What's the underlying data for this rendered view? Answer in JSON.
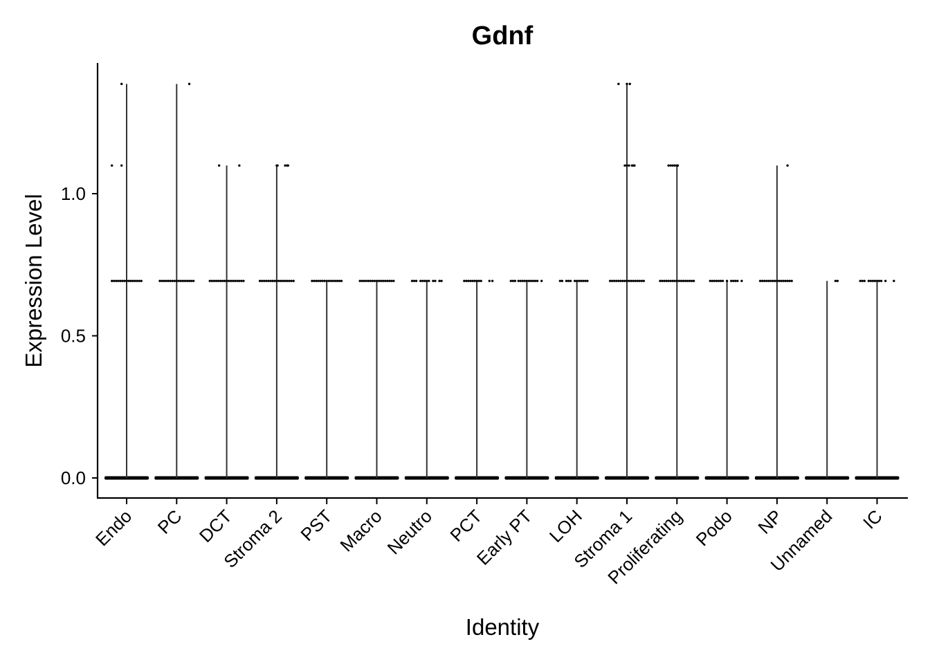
{
  "chart_data": {
    "type": "violin",
    "title": "Gdnf",
    "xlabel": "Identity",
    "ylabel": "Expression Level",
    "ylim": [
      -0.068,
      1.46
    ],
    "yticks": [
      0.0,
      0.5,
      1.0
    ],
    "ytick_labels": [
      "0.0",
      "0.5",
      "1.0"
    ],
    "grid": false,
    "legend": "none",
    "colors": {
      "points": "#000000",
      "violin": "#333333",
      "axis": "#000000"
    },
    "groups": [
      {
        "name": "Endo",
        "max": 1.386,
        "points": [
          {
            "y": 1.386,
            "dx": [
              -0.12
            ]
          },
          {
            "y": 1.099,
            "dx": [
              -0.35,
              -0.12
            ]
          },
          {
            "y": 0.693,
            "dx": [
              -0.35,
              -0.3,
              -0.25,
              -0.2,
              -0.15,
              -0.1,
              -0.05,
              0.0,
              0.05,
              0.1,
              0.15,
              0.2,
              0.25,
              0.3,
              0.35
            ]
          }
        ]
      },
      {
        "name": "PC",
        "max": 1.386,
        "points": [
          {
            "y": 1.386,
            "dx": [
              0.3
            ]
          },
          {
            "y": 0.693,
            "dx": [
              -0.4,
              -0.35,
              -0.3,
              -0.25,
              -0.2,
              -0.15,
              -0.1,
              -0.05,
              0.0,
              0.05,
              0.1,
              0.15,
              0.2,
              0.25,
              0.3,
              0.35,
              0.4
            ]
          }
        ]
      },
      {
        "name": "DCT",
        "max": 1.099,
        "points": [
          {
            "y": 1.099,
            "dx": [
              -0.18,
              0.3
            ]
          },
          {
            "y": 0.693,
            "dx": [
              -0.4,
              -0.35,
              -0.3,
              -0.25,
              -0.2,
              -0.15,
              -0.1,
              -0.05,
              0.0,
              0.05,
              0.1,
              0.15,
              0.2,
              0.25,
              0.3,
              0.35,
              0.4
            ]
          }
        ]
      },
      {
        "name": "Stroma 2",
        "max": 1.099,
        "points": [
          {
            "y": 1.099,
            "dx": [
              0.0,
              0.02,
              0.2,
              0.25,
              0.27
            ]
          },
          {
            "y": 0.693,
            "dx": [
              -0.4,
              -0.35,
              -0.3,
              -0.25,
              -0.2,
              -0.15,
              -0.1,
              -0.05,
              0.0,
              0.05,
              0.1,
              0.15,
              0.2,
              0.25,
              0.3,
              0.35,
              0.4
            ]
          }
        ]
      },
      {
        "name": "PST",
        "max": 0.693,
        "points": [
          {
            "y": 0.693,
            "dx": [
              -0.35,
              -0.3,
              -0.25,
              -0.2,
              -0.15,
              -0.1,
              -0.05,
              0.0,
              0.05,
              0.1,
              0.15,
              0.2,
              0.25,
              0.3,
              0.35
            ]
          }
        ]
      },
      {
        "name": "Macro",
        "max": 0.693,
        "points": [
          {
            "y": 0.693,
            "dx": [
              -0.4,
              -0.35,
              -0.3,
              -0.25,
              -0.2,
              -0.15,
              -0.1,
              -0.05,
              0.0,
              0.05,
              0.1,
              0.15,
              0.2,
              0.25,
              0.3,
              0.35,
              0.4
            ]
          }
        ]
      },
      {
        "name": "Neutro",
        "max": 0.693,
        "points": [
          {
            "y": 0.693,
            "dx": [
              -0.35,
              -0.3,
              -0.25,
              -0.15,
              -0.1,
              -0.05,
              0.0,
              0.05,
              0.15,
              0.2,
              0.3,
              0.35
            ]
          }
        ]
      },
      {
        "name": "PCT",
        "max": 0.693,
        "points": [
          {
            "y": 0.693,
            "dx": [
              -0.3,
              -0.25,
              -0.2,
              -0.15,
              -0.1,
              -0.05,
              0.0,
              0.05,
              0.1,
              0.3,
              0.37
            ]
          }
        ]
      },
      {
        "name": "Early PT",
        "max": 0.693,
        "points": [
          {
            "y": 0.693,
            "dx": [
              -0.38,
              -0.33,
              -0.28,
              -0.2,
              -0.15,
              -0.1,
              -0.05,
              0.0,
              0.05,
              0.1,
              0.15,
              0.2,
              0.25,
              0.35
            ]
          }
        ]
      },
      {
        "name": "LOH",
        "max": 0.693,
        "points": [
          {
            "y": 0.693,
            "dx": [
              -0.4,
              -0.35,
              -0.25,
              -0.2,
              -0.15,
              -0.05,
              0.0,
              0.05,
              0.1,
              0.15,
              0.2,
              0.25
            ]
          }
        ]
      },
      {
        "name": "Stroma 1",
        "max": 1.386,
        "points": [
          {
            "y": 1.386,
            "dx": [
              -0.2,
              0.0,
              0.07
            ]
          },
          {
            "y": 1.099,
            "dx": [
              -0.05,
              0.0,
              0.05,
              0.12,
              0.15,
              0.18
            ]
          },
          {
            "y": 0.693,
            "dx": [
              -0.4,
              -0.35,
              -0.3,
              -0.25,
              -0.2,
              -0.15,
              -0.1,
              -0.05,
              0.0,
              0.05,
              0.1,
              0.15,
              0.2,
              0.25,
              0.3,
              0.35,
              0.4
            ]
          }
        ]
      },
      {
        "name": "Proliferating",
        "max": 1.099,
        "points": [
          {
            "y": 1.099,
            "dx": [
              -0.2,
              -0.15,
              -0.1,
              -0.05,
              0.0,
              0.02
            ]
          },
          {
            "y": 0.693,
            "dx": [
              -0.4,
              -0.35,
              -0.3,
              -0.25,
              -0.2,
              -0.15,
              -0.1,
              -0.05,
              0.0,
              0.05,
              0.1,
              0.15,
              0.2,
              0.25,
              0.3,
              0.35,
              0.4
            ]
          }
        ]
      },
      {
        "name": "Podo",
        "max": 0.693,
        "points": [
          {
            "y": 0.693,
            "dx": [
              -0.4,
              -0.35,
              -0.3,
              -0.25,
              -0.2,
              -0.15,
              -0.1,
              0.0,
              0.1,
              0.15,
              0.2,
              0.25,
              0.35
            ]
          }
        ]
      },
      {
        "name": "NP",
        "max": 1.099,
        "points": [
          {
            "y": 1.099,
            "dx": [
              0.25
            ]
          },
          {
            "y": 0.693,
            "dx": [
              -0.4,
              -0.35,
              -0.3,
              -0.25,
              -0.2,
              -0.15,
              -0.1,
              -0.05,
              0.0,
              0.05,
              0.1,
              0.15,
              0.2,
              0.25,
              0.3,
              0.35
            ]
          }
        ]
      },
      {
        "name": "Unnamed",
        "max": 0.693,
        "points": [
          {
            "y": 0.693,
            "dx": [
              0.2,
              0.25
            ]
          }
        ]
      },
      {
        "name": "IC",
        "max": 0.693,
        "points": [
          {
            "y": 0.693,
            "dx": [
              -0.4,
              -0.35,
              -0.3,
              -0.2,
              -0.15,
              -0.1,
              -0.05,
              0.0,
              0.05,
              0.1,
              0.2,
              0.4
            ]
          }
        ]
      }
    ]
  }
}
